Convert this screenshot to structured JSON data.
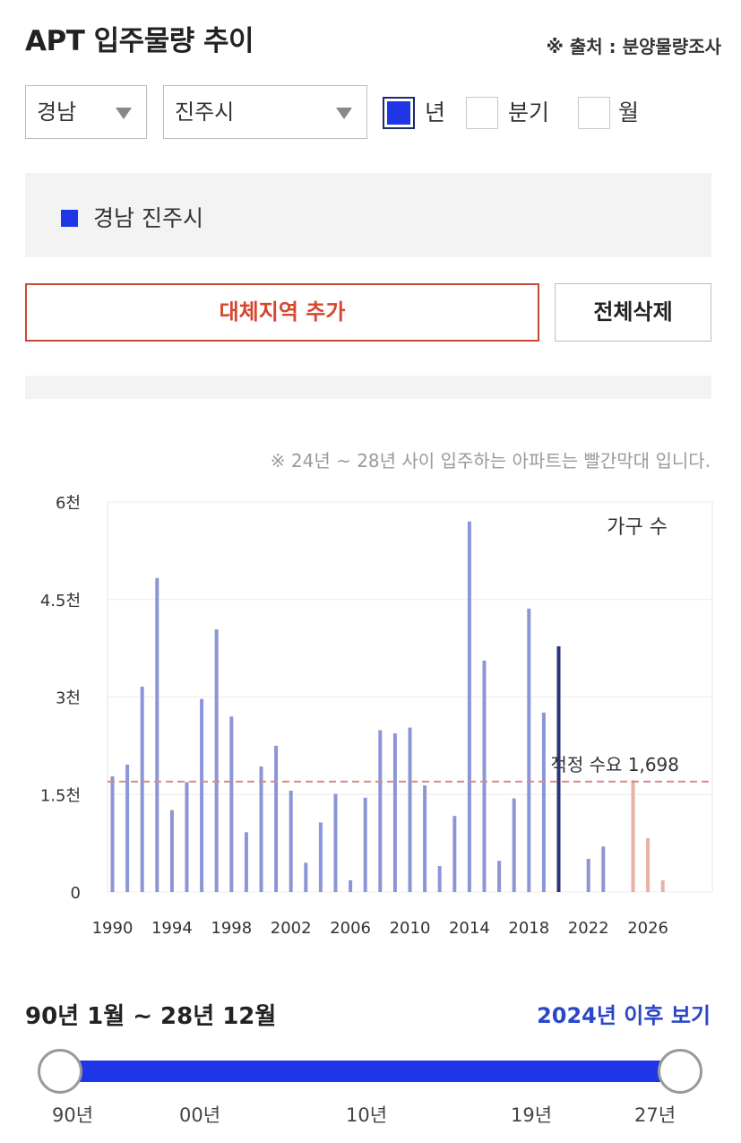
{
  "header": {
    "title": "APT 입주물량 추이",
    "source": "※ 출처 : 분양물량조사"
  },
  "filters": {
    "region": "경남",
    "city": "진주시",
    "period_options": [
      {
        "label": "년",
        "checked": true
      },
      {
        "label": "분기",
        "checked": false
      },
      {
        "label": "월",
        "checked": false
      }
    ]
  },
  "legend": {
    "item": "경남 진주시",
    "color": "#1f36e6"
  },
  "buttons": {
    "add_region": "대체지역 추가",
    "delete_all": "전체삭제"
  },
  "note": "※ 24년 ~ 28년 사이 입주하는 아파트는 빨간막대 입니다.",
  "chart_data": {
    "type": "bar",
    "y_unit_label": "가구 수",
    "y_ticks": [
      "6천",
      "4.5천",
      "3천",
      "1.5천",
      "0"
    ],
    "ylim": [
      0,
      6000
    ],
    "x_tick_labels": [
      "1990",
      "1994",
      "1998",
      "2002",
      "2006",
      "2010",
      "2014",
      "2018",
      "2022",
      "2026"
    ],
    "categories": [
      1990,
      1991,
      1992,
      1993,
      1994,
      1995,
      1996,
      1997,
      1998,
      1999,
      2000,
      2001,
      2002,
      2003,
      2004,
      2005,
      2006,
      2007,
      2008,
      2009,
      2010,
      2011,
      2012,
      2013,
      2014,
      2015,
      2016,
      2017,
      2018,
      2019,
      2020,
      2021,
      2022,
      2023,
      2024,
      2025,
      2026,
      2027,
      2028
    ],
    "values": [
      1780,
      1960,
      3160,
      4830,
      1260,
      1690,
      2970,
      4040,
      2700,
      920,
      1930,
      2250,
      1560,
      450,
      1070,
      1510,
      180,
      1450,
      2490,
      2440,
      2530,
      1640,
      400,
      1170,
      5700,
      3560,
      480,
      1440,
      4360,
      2760,
      3780,
      0,
      510,
      700,
      0,
      1720,
      830,
      180,
      0
    ],
    "highlight_years": [
      2024,
      2025,
      2026,
      2027,
      2028
    ],
    "colors": {
      "normal": "#8b96d8",
      "current": "#27347a",
      "future": "#e9b1a4"
    },
    "reference_line": {
      "label": "적정 수요 1,698",
      "value": 1698,
      "color": "#d88a8a"
    },
    "grid": true
  },
  "range": {
    "label": "90년 1월 ~ 28년 12월",
    "after_link": "2024년 이후 보기",
    "ticks": [
      "90년",
      "00년",
      "10년",
      "19년",
      "27년"
    ]
  }
}
